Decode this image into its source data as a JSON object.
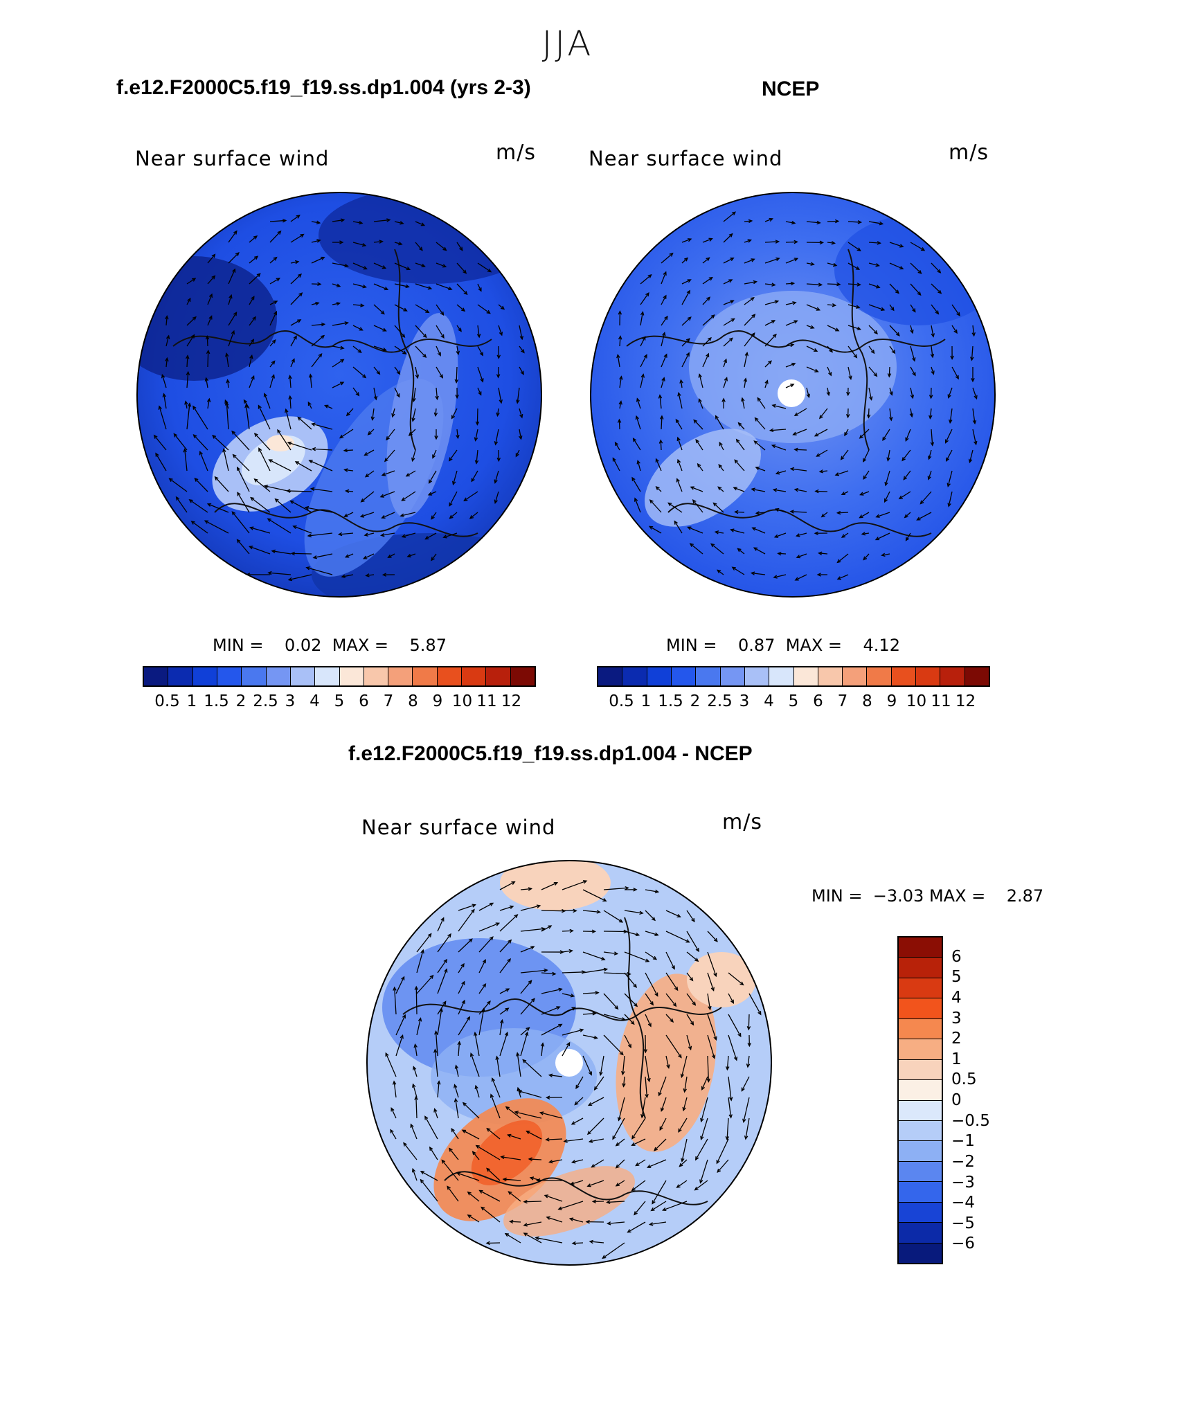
{
  "figure": {
    "season": "JJA",
    "panels": [
      {
        "id": "model",
        "case_title": "f.e12.F2000C5.f19_f19.ss.dp1.004 (yrs 2-3)",
        "variable_label": "Near surface wind",
        "units": "m/s",
        "min_label": "MIN =",
        "min_value": "0.02",
        "max_label": "MAX =",
        "max_value": "5.87"
      },
      {
        "id": "obs",
        "case_title": "NCEP",
        "variable_label": "Near surface wind",
        "units": "m/s",
        "min_label": "MIN =",
        "min_value": "0.87",
        "max_label": "MAX =",
        "max_value": "4.12"
      },
      {
        "id": "diff",
        "case_title": "f.e12.F2000C5.f19_f19.ss.dp1.004 - NCEP",
        "variable_label": "Near surface wind",
        "units": "m/s",
        "min_label": "MIN =",
        "min_value": "−3.03",
        "max_label": "MAX =",
        "max_value": "2.87"
      }
    ],
    "colorbar_abs": {
      "ticks": [
        "0.5",
        "1",
        "1.5",
        "2",
        "2.5",
        "3",
        "4",
        "5",
        "6",
        "7",
        "8",
        "9",
        "10",
        "11",
        "12"
      ],
      "colors": [
        "#0a1a80",
        "#0b2bb0",
        "#1040d8",
        "#2457ec",
        "#4a78ef",
        "#7596f3",
        "#a9c0f7",
        "#d8e6fb",
        "#fbe7d8",
        "#f8c7ab",
        "#f4a07a",
        "#f07a48",
        "#e8501e",
        "#d93a12",
        "#b8200c",
        "#7c0a04"
      ]
    },
    "colorbar_diff": {
      "ticks": [
        "6",
        "5",
        "4",
        "3",
        "2",
        "1",
        "0.5",
        "0",
        "−0.5",
        "−1",
        "−2",
        "−3",
        "−4",
        "−5",
        "−6"
      ],
      "colors": [
        "#8b0e04",
        "#b82209",
        "#d93a12",
        "#f2541c",
        "#f5884f",
        "#f7ae83",
        "#f8d3bc",
        "#fbf0e5",
        "#dbe8fb",
        "#b5cdf8",
        "#8db0f4",
        "#5b86f0",
        "#3466ec",
        "#1844d6",
        "#0c2aa8",
        "#081a7c"
      ]
    }
  }
}
